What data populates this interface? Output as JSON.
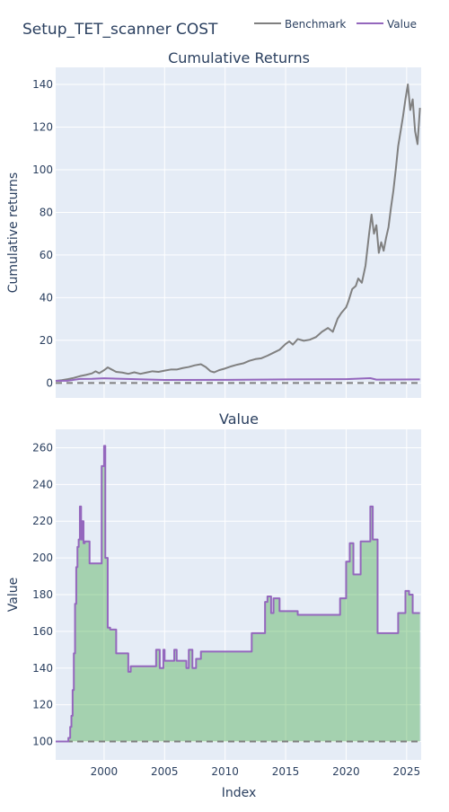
{
  "title": "Setup_TET_scanner COST",
  "legend": {
    "items": [
      {
        "name": "Benchmark",
        "color": "#808080"
      },
      {
        "name": "Value",
        "color": "#9467bd"
      }
    ]
  },
  "colors": {
    "plot_bg": "#e5ecf6",
    "grid": "#ffffff",
    "fill": "rgba(44,160,44,0.35)",
    "baseline": "#808080"
  },
  "chart_data": [
    {
      "type": "line",
      "title": "Cumulative Returns",
      "xlabel": "",
      "ylabel": "Cumulative returns",
      "xlim": [
        1996,
        2026.2
      ],
      "ylim": [
        -7,
        148
      ],
      "xticks": [
        2000,
        2005,
        2010,
        2015,
        2020,
        2025
      ],
      "yticks": [
        0,
        20,
        40,
        60,
        80,
        100,
        120,
        140
      ],
      "grid": true,
      "baseline": 0,
      "series": [
        {
          "name": "Benchmark",
          "color": "#808080",
          "x": [
            1996.0,
            1996.5,
            1997.0,
            1997.5,
            1998.0,
            1998.5,
            1999.0,
            1999.3,
            1999.6,
            2000.0,
            2000.3,
            2000.6,
            2001.0,
            2001.5,
            2002.0,
            2002.5,
            2003.0,
            2003.5,
            2004.0,
            2004.5,
            2005.0,
            2005.5,
            2006.0,
            2006.5,
            2007.0,
            2007.5,
            2008.0,
            2008.4,
            2008.8,
            2009.1,
            2009.5,
            2010.0,
            2010.5,
            2011.0,
            2011.5,
            2012.0,
            2012.5,
            2013.0,
            2013.5,
            2014.0,
            2014.5,
            2015.0,
            2015.3,
            2015.6,
            2016.0,
            2016.5,
            2017.0,
            2017.5,
            2018.0,
            2018.5,
            2018.9,
            2019.3,
            2019.6,
            2020.0,
            2020.2,
            2020.5,
            2020.8,
            2021.0,
            2021.3,
            2021.6,
            2021.9,
            2022.1,
            2022.3,
            2022.5,
            2022.7,
            2022.9,
            2023.1,
            2023.3,
            2023.5,
            2023.7,
            2023.9,
            2024.1,
            2024.3,
            2024.5,
            2024.7,
            2024.9,
            2025.1,
            2025.3,
            2025.5,
            2025.7,
            2025.9,
            2026.1
          ],
          "y": [
            1.0,
            1.3,
            1.8,
            2.4,
            3.2,
            3.8,
            4.5,
            5.5,
            4.6,
            6.0,
            7.3,
            6.4,
            5.2,
            4.9,
            4.3,
            5.0,
            4.3,
            4.9,
            5.5,
            5.2,
            5.8,
            6.3,
            6.3,
            7.0,
            7.5,
            8.3,
            8.8,
            7.5,
            5.5,
            5.0,
            6.0,
            6.8,
            7.8,
            8.6,
            9.2,
            10.4,
            11.2,
            11.6,
            12.8,
            14.2,
            15.6,
            18.3,
            19.5,
            18.0,
            20.6,
            19.8,
            20.3,
            21.5,
            24.0,
            25.8,
            24.0,
            30.2,
            32.8,
            35.5,
            38.5,
            44.0,
            45.5,
            49.0,
            47.0,
            55.0,
            70.0,
            79.0,
            70.0,
            74.0,
            61.0,
            66.0,
            62.0,
            68.0,
            73.0,
            82.0,
            90.0,
            100.0,
            111.0,
            118.0,
            125.0,
            133.0,
            140.0,
            128.0,
            133.0,
            118.0,
            112.0,
            129.0
          ]
        },
        {
          "name": "Value",
          "color": "#9467bd",
          "x": [
            1996.0,
            1997.0,
            1998.0,
            1999.0,
            2000.0,
            2005.0,
            2010.0,
            2015.0,
            2020.0,
            2022.0,
            2022.5,
            2026.1
          ],
          "y": [
            1.0,
            1.08,
            1.9,
            1.95,
            2.2,
            1.42,
            1.48,
            1.71,
            1.78,
            2.28,
            1.59,
            1.71
          ]
        }
      ]
    },
    {
      "type": "area",
      "title": "Value",
      "xlabel": "Index",
      "ylabel": "Value",
      "xlim": [
        1996,
        2026.2
      ],
      "ylim": [
        90,
        270
      ],
      "xticks": [
        2000,
        2005,
        2010,
        2015,
        2020,
        2025
      ],
      "yticks": [
        100,
        120,
        140,
        160,
        180,
        200,
        220,
        240,
        260
      ],
      "grid": true,
      "baseline": 100,
      "series": [
        {
          "name": "Value",
          "color": "#9467bd",
          "x": [
            1996.0,
            1997.0,
            1997.05,
            1997.2,
            1997.3,
            1997.4,
            1997.5,
            1997.6,
            1997.7,
            1997.8,
            1997.9,
            1998.0,
            1998.1,
            1998.2,
            1998.3,
            1998.4,
            1998.6,
            1998.8,
            1999.0,
            1999.3,
            1999.5,
            1999.8,
            2000.0,
            2000.1,
            2000.2,
            2000.3,
            2000.35,
            2000.5,
            2001.0,
            2001.2,
            2001.3,
            2001.5,
            2002.0,
            2002.2,
            2002.5,
            2003.0,
            2003.5,
            2004.0,
            2004.3,
            2004.6,
            2004.9,
            2005.0,
            2005.3,
            2005.8,
            2006.0,
            2006.3,
            2006.5,
            2006.8,
            2007.0,
            2007.3,
            2007.6,
            2008.0,
            2008.3,
            2009.0,
            2009.5,
            2010.0,
            2011.0,
            2011.5,
            2012.0,
            2012.2,
            2012.6,
            2013.0,
            2013.3,
            2013.5,
            2013.8,
            2014.0,
            2014.5,
            2015.0,
            2015.5,
            2016.0,
            2017.0,
            2018.0,
            2019.0,
            2019.5,
            2019.8,
            2020.0,
            2020.3,
            2020.6,
            2020.9,
            2021.2,
            2021.5,
            2021.8,
            2022.0,
            2022.2,
            2022.4,
            2022.6,
            2023.0,
            2023.5,
            2024.0,
            2024.3,
            2024.6,
            2024.9,
            2025.2,
            2025.5,
            2025.8,
            2026.1
          ],
          "y": [
            100,
            100,
            102,
            108,
            114,
            128,
            148,
            175,
            195,
            206,
            210,
            228,
            210,
            220,
            208,
            209,
            209,
            197,
            197,
            197,
            197,
            250,
            261,
            200,
            200,
            162,
            162,
            161,
            148,
            148,
            148,
            148,
            138,
            141,
            141,
            141,
            141,
            141,
            150,
            140,
            150,
            144,
            144,
            150,
            144,
            144,
            144,
            140,
            150,
            140,
            145,
            149,
            149,
            149,
            149,
            149,
            149,
            149,
            149,
            159,
            159,
            159,
            176,
            179,
            170,
            178,
            171,
            171,
            171,
            169,
            169,
            169,
            169,
            178,
            178,
            198,
            208,
            191,
            191,
            209,
            209,
            209,
            228,
            210,
            210,
            159,
            159,
            159,
            159,
            170,
            170,
            182,
            180,
            170,
            170,
            170
          ]
        }
      ]
    }
  ]
}
